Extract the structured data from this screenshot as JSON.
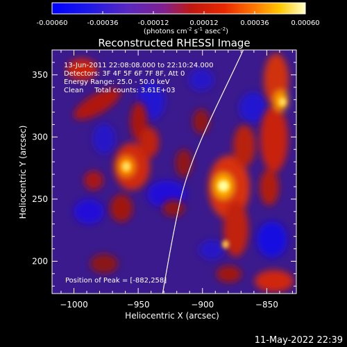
{
  "colorbar": {
    "min": -0.0006,
    "max": 0.0006,
    "tick_labels": [
      "-0.00060",
      "-0.00036",
      "-0.00012",
      "0.00012",
      "0.00036",
      "0.00060"
    ],
    "unit_prefix": "(photons cm",
    "unit_exp1": "-2",
    "unit_mid1": " s",
    "unit_exp2": "-1",
    "unit_mid2": " asec",
    "unit_exp3": "-2",
    "unit_suffix": ")"
  },
  "plot": {
    "title": "Reconstructed RHESSI Image",
    "xlabel": "Heliocentric X (arcsec)",
    "ylabel": "Heliocentric Y (arcsec)",
    "xlim": [
      -1017,
      -827
    ],
    "ylim": [
      174,
      370
    ],
    "x_ticks": [
      {
        "value": -1000,
        "label": "−1000"
      },
      {
        "value": -950,
        "label": "−950"
      },
      {
        "value": -900,
        "label": "−900"
      },
      {
        "value": -850,
        "label": "−850"
      }
    ],
    "y_ticks": [
      {
        "value": 200,
        "label": "200"
      },
      {
        "value": 250,
        "label": "250"
      },
      {
        "value": 300,
        "label": "300"
      },
      {
        "value": 350,
        "label": "350"
      }
    ]
  },
  "annotations": {
    "time_range": "13-Jun-2011 22:08:08.000 to 22:10:24.000",
    "detectors": "Detectors: 3F 4F 5F 6F 7F 8F, Att 0",
    "energy": "Energy Range: 25.0 - 50.0 keV",
    "method": "Clean     Total counts: 3.61E+03",
    "peak": "Position of Peak = [-882,258]"
  },
  "footer": {
    "date": "11-May-2022 22:39"
  }
}
